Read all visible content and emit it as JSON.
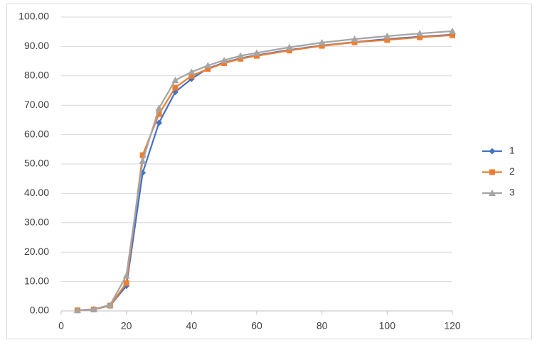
{
  "chart_data": {
    "type": "line",
    "x": [
      5,
      10,
      15,
      20,
      25,
      30,
      35,
      40,
      45,
      50,
      55,
      60,
      70,
      80,
      90,
      100,
      110,
      120
    ],
    "series": [
      {
        "name": "1",
        "color": "#4472c4",
        "marker": "diamond",
        "values": [
          0.2,
          0.5,
          1.8,
          8.5,
          47,
          64,
          74.5,
          79,
          82.5,
          84.5,
          86,
          87,
          88.8,
          90.3,
          91.5,
          92.5,
          93.3,
          94
        ]
      },
      {
        "name": "2",
        "color": "#ed7d31",
        "marker": "square",
        "values": [
          0.2,
          0.5,
          1.8,
          9.5,
          53,
          67,
          76,
          80,
          82.3,
          84.3,
          85.8,
          86.8,
          88.6,
          90.2,
          91.4,
          92.2,
          93.1,
          93.8
        ]
      },
      {
        "name": "3",
        "color": "#a5a5a5",
        "marker": "triangle",
        "values": [
          0.2,
          0.6,
          2,
          12,
          51,
          69,
          78.5,
          81.3,
          83.5,
          85.3,
          86.8,
          87.8,
          89.7,
          91.3,
          92.5,
          93.5,
          94.4,
          95.2
        ]
      }
    ],
    "xlim": [
      0,
      120
    ],
    "xticks": [
      0,
      20,
      40,
      60,
      80,
      100,
      120
    ],
    "ylim": [
      0,
      100
    ],
    "yticks": [
      {
        "value": 0,
        "label": "0.00"
      },
      {
        "value": 10,
        "label": "10.00"
      },
      {
        "value": 20,
        "label": "20.00"
      },
      {
        "value": 30,
        "label": "30.00"
      },
      {
        "value": 40,
        "label": "40.00"
      },
      {
        "value": 50,
        "label": "50.00"
      },
      {
        "value": 60,
        "label": "60.00"
      },
      {
        "value": 70,
        "label": "70.00"
      },
      {
        "value": 80,
        "label": "80.00"
      },
      {
        "value": 90,
        "label": "90.00"
      },
      {
        "value": 100,
        "label": "100.00"
      }
    ],
    "grid": true,
    "legend": "right"
  }
}
